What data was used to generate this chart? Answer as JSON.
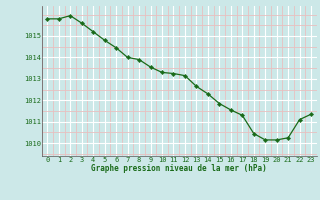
{
  "x": [
    0,
    1,
    2,
    3,
    4,
    5,
    6,
    7,
    8,
    9,
    10,
    11,
    12,
    13,
    14,
    15,
    16,
    17,
    18,
    19,
    20,
    21,
    22,
    23
  ],
  "y": [
    1015.8,
    1015.8,
    1015.95,
    1015.6,
    1015.2,
    1014.8,
    1014.45,
    1014.0,
    1013.9,
    1013.55,
    1013.3,
    1013.25,
    1013.15,
    1012.65,
    1012.3,
    1011.85,
    1011.55,
    1011.3,
    1010.45,
    1010.15,
    1010.15,
    1010.25,
    1011.1,
    1011.35
  ],
  "line_color": "#1a6b1a",
  "marker_color": "#1a6b1a",
  "bg_color": "#cce8e8",
  "grid_major_color": "#ffffff",
  "grid_minor_color": "#e8c0c0",
  "xlabel": "Graphe pression niveau de la mer (hPa)",
  "xlabel_color": "#1a6b1a",
  "tick_color": "#1a6b1a",
  "ylim": [
    1009.4,
    1016.4
  ],
  "yticks": [
    1010,
    1011,
    1012,
    1013,
    1014,
    1015
  ],
  "ylim_top_extra": 1016.4,
  "xlim": [
    -0.5,
    23.5
  ],
  "xticks": [
    0,
    1,
    2,
    3,
    4,
    5,
    6,
    7,
    8,
    9,
    10,
    11,
    12,
    13,
    14,
    15,
    16,
    17,
    18,
    19,
    20,
    21,
    22,
    23
  ]
}
